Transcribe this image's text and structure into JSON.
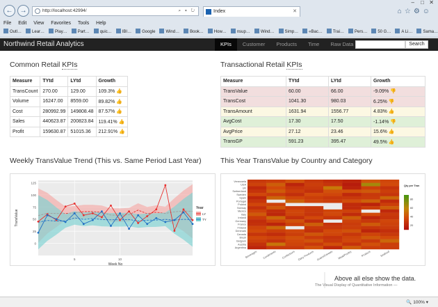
{
  "browser": {
    "url": "http://localhost:42994/",
    "tab_title": "Index",
    "menu": [
      "File",
      "Edit",
      "View",
      "Favorites",
      "Tools",
      "Help"
    ],
    "favorites": [
      "Outl…",
      "Lear…",
      "Play…",
      "Part…",
      "quic…",
      "IBI…",
      "Google",
      "Wind…",
      "Book…",
      "How…",
      "nsup…",
      "Wind…",
      "Simp…",
      "«Bac…",
      "Trai…",
      "Pers…",
      "50 G…",
      "A Li…",
      "Sama…"
    ],
    "zoom": "100%"
  },
  "navbar": {
    "brand": "Northwind Retail Analytics",
    "items": [
      "KPIs",
      "Customer",
      "Products",
      "Time",
      "Raw Data"
    ],
    "search_placeholder": "",
    "search_button": "Search"
  },
  "common_kpis": {
    "title_prefix": "Common Retail ",
    "title_kpi": "KPIs",
    "headers": [
      "Measure",
      "TYtd",
      "LYtd",
      "Growth"
    ],
    "rows": [
      {
        "measure": "TransCount",
        "tytd": "270.00",
        "lytd": "129.00",
        "growth": "109.3%"
      },
      {
        "measure": "Volume",
        "tytd": "16247.00",
        "lytd": "8559.00",
        "growth": "89.82%"
      },
      {
        "measure": "Cost",
        "tytd": "280992.99",
        "lytd": "149808.48",
        "growth": "87.57%"
      },
      {
        "measure": "Sales",
        "tytd": "440623.87",
        "lytd": "200823.84",
        "growth": "119.41%"
      },
      {
        "measure": "Profit",
        "tytd": "159630.87",
        "lytd": "51015.36",
        "growth": "212.91%"
      }
    ]
  },
  "transactional_kpis": {
    "title_prefix": "Transactional Retail ",
    "title_kpi": "KPIs",
    "headers": [
      "Measure",
      "TYtd",
      "LYtd",
      "Growth"
    ],
    "rows": [
      {
        "measure": "TransValue",
        "tytd": "60.00",
        "lytd": "66.00",
        "growth": "-9.09%",
        "status": "danger",
        "thumb": "down"
      },
      {
        "measure": "TransCost",
        "tytd": "1041.30",
        "lytd": "980.03",
        "growth": "6.25%",
        "status": "danger",
        "thumb": "down"
      },
      {
        "measure": "TransAmount",
        "tytd": "1631.94",
        "lytd": "1556.77",
        "growth": "4.83%",
        "status": "warning",
        "thumb": "up"
      },
      {
        "measure": "AvgCost",
        "tytd": "17.30",
        "lytd": "17.50",
        "growth": "-1.14%",
        "status": "success",
        "thumb": "down"
      },
      {
        "measure": "AvgPrice",
        "tytd": "27.12",
        "lytd": "23.46",
        "growth": "15.6%",
        "status": "warning",
        "thumb": "up"
      },
      {
        "measure": "TransGP",
        "tytd": "591.23",
        "lytd": "395.47",
        "growth": "49.5%",
        "status": "success",
        "thumb": "up"
      }
    ]
  },
  "colors": {
    "ly": "#e8302e",
    "ty": "#2170c4",
    "ly_band": "#f4a9a6",
    "ty_band": "#7dd3d3",
    "panel_bg": "#ebebeb"
  },
  "chart_data": [
    {
      "type": "line",
      "title": "Weekly TransValue Trend (This vs. Same Period Last Year)",
      "xlabel": "Week No",
      "ylabel": "TransValue",
      "legend_title": "Year",
      "legend_placement": "right",
      "xlim": [
        1,
        18
      ],
      "ylim": [
        -25,
        130
      ],
      "x_ticks": [
        5,
        10
      ],
      "y_ticks": [
        0,
        25,
        50,
        75,
        100,
        125
      ],
      "x": [
        1,
        2,
        3,
        4,
        5,
        6,
        7,
        8,
        9,
        10,
        11,
        12,
        13,
        14,
        15,
        16,
        17,
        18
      ],
      "series": [
        {
          "name": "LY",
          "values": [
            45,
            60,
            48,
            76,
            82,
            58,
            62,
            54,
            78,
            48,
            66,
            42,
            56,
            70,
            120,
            26,
            70,
            48
          ]
        },
        {
          "name": "TY",
          "values": [
            22,
            58,
            50,
            44,
            62,
            40,
            48,
            66,
            36,
            62,
            30,
            58,
            40,
            52,
            44,
            48,
            64,
            40
          ]
        }
      ]
    },
    {
      "type": "heatmap",
      "title": "This Year TransValue by Country and Category",
      "legend_title": "Qty per Tran",
      "legend_placement": "right",
      "legend_ticks": [
        20,
        40,
        60,
        80
      ],
      "legend_range": [
        10,
        90
      ],
      "x_categories": [
        "Beverages",
        "Condiments",
        "Confections",
        "Dairy Products",
        "Grains/Cereals",
        "Meat/Poultry",
        "Produce",
        "Seafood"
      ],
      "y_categories": [
        "Venezuela",
        "USA",
        "UK",
        "Switzerland",
        "Sweden",
        "Spain",
        "Portugal",
        "Poland",
        "Norway",
        "Mexico",
        "Italy",
        "Ireland",
        "Germany",
        "France",
        "Finland",
        "Denmark",
        "Canada",
        "Brazil",
        "Belgium",
        "Austria",
        "Argentina"
      ],
      "values": [
        [
          30,
          32,
          41,
          30,
          24,
          20,
          42,
          36
        ],
        [
          34,
          45,
          20,
          32,
          28,
          16,
          66,
          38
        ],
        [
          22,
          38,
          28,
          30,
          54,
          19,
          33,
          27
        ],
        [
          27,
          44,
          32,
          26,
          40,
          40,
          43,
          32
        ],
        [
          36,
          31,
          25,
          38,
          36,
          22,
          30,
          28
        ],
        [
          21,
          47,
          36,
          32,
          29,
          30,
          31,
          48
        ],
        [
          28,
          0,
          46,
          35,
          32,
          39,
          46,
          23
        ],
        [
          36,
          34,
          0,
          0,
          0,
          23,
          19,
          32
        ],
        [
          26,
          42,
          31,
          30,
          0,
          23,
          32,
          45
        ],
        [
          34,
          24,
          36,
          30,
          36,
          34,
          0,
          22
        ],
        [
          43,
          21,
          35,
          28,
          37,
          23,
          38,
          30
        ],
        [
          31,
          48,
          26,
          37,
          29,
          45,
          21,
          28
        ],
        [
          24,
          35,
          41,
          24,
          0,
          34,
          29,
          36
        ],
        [
          26,
          20,
          34,
          45,
          27,
          31,
          44,
          34
        ],
        [
          35,
          48,
          0,
          30,
          30,
          32,
          29,
          31
        ],
        [
          38,
          32,
          36,
          26,
          38,
          41,
          20,
          25
        ],
        [
          28,
          24,
          32,
          42,
          36,
          29,
          35,
          30
        ],
        [
          37,
          34,
          40,
          31,
          27,
          35,
          43,
          38
        ],
        [
          33,
          27,
          37,
          41,
          29,
          36,
          30,
          48
        ],
        [
          26,
          52,
          35,
          30,
          39,
          27,
          40,
          32
        ],
        [
          20,
          30,
          30,
          40,
          22,
          44,
          32,
          31
        ]
      ]
    }
  ],
  "quote": {
    "text": "Above all else show the data.",
    "source": "The Visual Display of Quantitative Information —"
  }
}
